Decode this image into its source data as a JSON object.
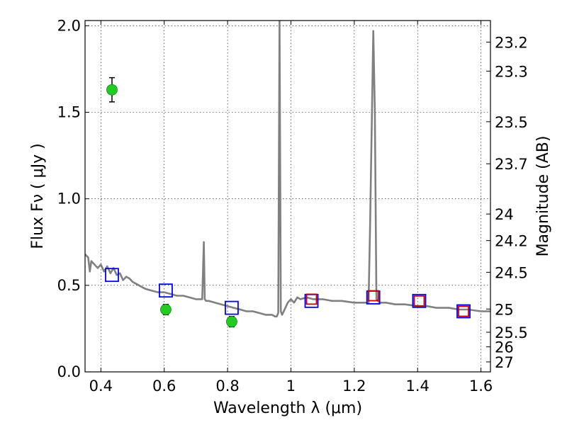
{
  "chart_data": {
    "type": "scatter",
    "xlabel": "Wavelength  λ (μm)",
    "ylabel": "Flux  Fν  ( μJy )",
    "y2label": "Magnitude (AB)",
    "xlim": [
      0.35,
      1.63
    ],
    "ylim": [
      0.0,
      2.03
    ],
    "grid": true,
    "x_ticks": [
      0.4,
      0.6,
      0.8,
      1.0,
      1.2,
      1.4,
      1.6
    ],
    "x_tick_labels": [
      "0.4",
      "0.6",
      "0.8",
      "1",
      "1.2",
      "1.4",
      "1.6"
    ],
    "y_ticks": [
      0.0,
      0.5,
      1.0,
      1.5,
      2.0
    ],
    "y_tick_labels": [
      "0.0",
      "0.5",
      "1.0",
      "1.5",
      "2.0"
    ],
    "mag_ticks": [
      23.2,
      23.3,
      23.5,
      23.7,
      24,
      24.2,
      24.5,
      25,
      25.5,
      26,
      27
    ],
    "mag_tick_labels": [
      "23.2",
      "23.3",
      "23.5",
      "23.7",
      "24",
      "24.2",
      "24.5",
      "25",
      "25.5",
      "26",
      "27"
    ],
    "series": [
      {
        "type": "line",
        "color": "#808080",
        "x": [
          0.35,
          0.36,
          0.365,
          0.37,
          0.38,
          0.39,
          0.4,
          0.41,
          0.42,
          0.43,
          0.44,
          0.45,
          0.46,
          0.47,
          0.48,
          0.49,
          0.5,
          0.52,
          0.54,
          0.56,
          0.58,
          0.6,
          0.62,
          0.64,
          0.66,
          0.68,
          0.7,
          0.71,
          0.72,
          0.725,
          0.728,
          0.732,
          0.74,
          0.76,
          0.78,
          0.8,
          0.82,
          0.84,
          0.86,
          0.88,
          0.9,
          0.92,
          0.94,
          0.95,
          0.955,
          0.96,
          0.962,
          0.964,
          0.966,
          0.968,
          0.972,
          0.98,
          0.99,
          1.0,
          1.01,
          1.02,
          1.03,
          1.05,
          1.07,
          1.1,
          1.13,
          1.16,
          1.2,
          1.23,
          1.245,
          1.25,
          1.26,
          1.265,
          1.27,
          1.275,
          1.28,
          1.29,
          1.3,
          1.33,
          1.36,
          1.4,
          1.43,
          1.46,
          1.5,
          1.53,
          1.56,
          1.6,
          1.63
        ],
        "y": [
          0.68,
          0.66,
          0.58,
          0.64,
          0.62,
          0.6,
          0.62,
          0.58,
          0.61,
          0.57,
          0.6,
          0.56,
          0.57,
          0.53,
          0.55,
          0.54,
          0.52,
          0.5,
          0.48,
          0.47,
          0.46,
          0.46,
          0.45,
          0.44,
          0.44,
          0.43,
          0.42,
          0.42,
          0.42,
          0.75,
          0.42,
          0.41,
          0.41,
          0.4,
          0.39,
          0.38,
          0.37,
          0.36,
          0.35,
          0.35,
          0.34,
          0.33,
          0.33,
          0.32,
          0.32,
          0.34,
          1.2,
          2.03,
          1.2,
          0.35,
          0.33,
          0.36,
          0.4,
          0.42,
          0.4,
          0.43,
          0.42,
          0.43,
          0.42,
          0.42,
          0.41,
          0.41,
          0.4,
          0.4,
          0.4,
          0.85,
          1.97,
          1.5,
          0.42,
          0.41,
          0.4,
          0.4,
          0.4,
          0.39,
          0.39,
          0.38,
          0.38,
          0.37,
          0.37,
          0.36,
          0.36,
          0.35,
          0.35
        ]
      },
      {
        "type": "errorbar",
        "color": "#22cc22",
        "x": [
          0.435,
          0.605,
          0.813
        ],
        "y": [
          1.63,
          0.36,
          0.29
        ],
        "yerr": [
          0.07,
          0.03,
          0.03
        ]
      },
      {
        "type": "square",
        "color": "#0000ff",
        "x": [
          0.435,
          0.605,
          0.813,
          1.065,
          1.26,
          1.405,
          1.545
        ],
        "y": [
          0.56,
          0.47,
          0.37,
          0.41,
          0.43,
          0.41,
          0.35
        ]
      },
      {
        "type": "square",
        "color": "#cc0000",
        "x": [
          1.065,
          1.26,
          1.405,
          1.545
        ],
        "y": [
          0.42,
          0.44,
          0.41,
          0.35
        ]
      }
    ]
  }
}
